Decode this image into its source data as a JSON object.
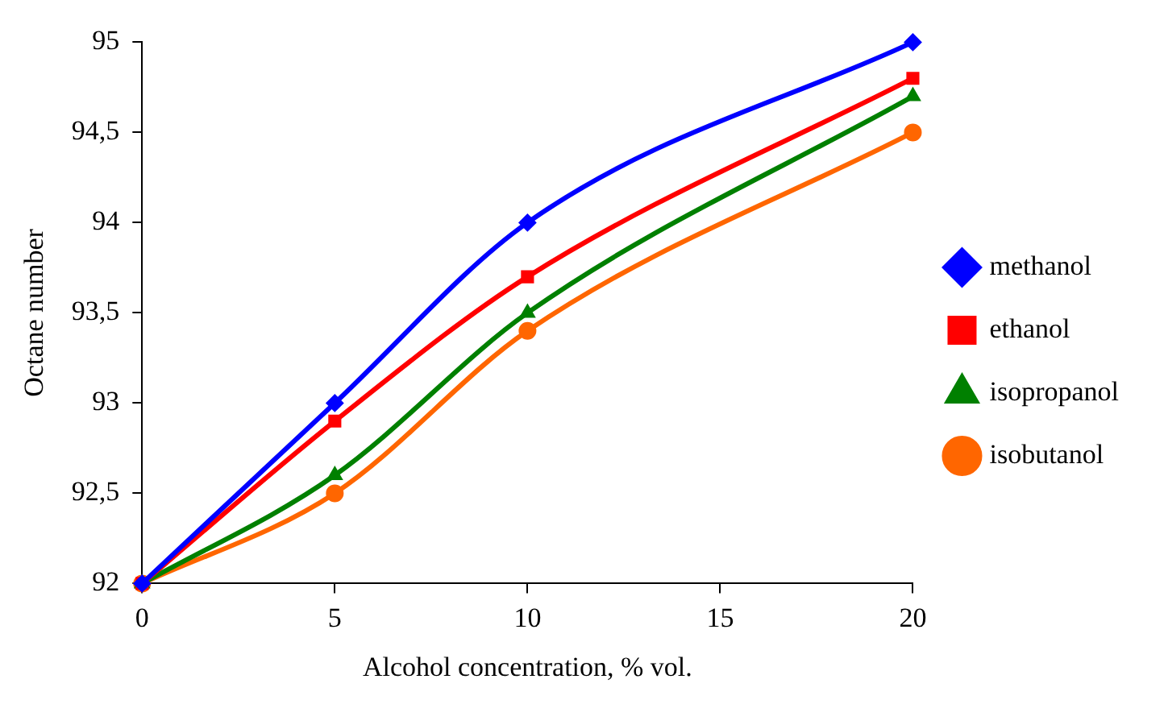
{
  "chart_data": {
    "type": "line",
    "xlabel": "Alcohol concentration, % vol.",
    "ylabel": "Octane number",
    "x": [
      0,
      5,
      10,
      20
    ],
    "xlim": [
      0,
      20
    ],
    "xticks": [
      0,
      5,
      10,
      15,
      20
    ],
    "ylim": [
      92,
      95
    ],
    "yticks": [
      92,
      {
        "value": 92.5,
        "label": "92,5"
      },
      93,
      {
        "value": 93.5,
        "label": "93,5"
      },
      94,
      {
        "value": 94.5,
        "label": "94,5"
      },
      95
    ],
    "grid": false,
    "legend": "right",
    "line_style": "solid",
    "series": [
      {
        "name": "methanol",
        "color": "#0000ff",
        "marker": "diamond",
        "values": [
          92,
          93,
          94,
          95
        ]
      },
      {
        "name": "ethanol",
        "color": "#ff0000",
        "marker": "square",
        "values": [
          92,
          92.9,
          93.7,
          94.8
        ]
      },
      {
        "name": "isopropanol",
        "color": "#008000",
        "marker": "triangle",
        "values": [
          92,
          92.6,
          93.5,
          94.7
        ]
      },
      {
        "name": "isobutanol",
        "color": "#ff6600",
        "marker": "circle",
        "values": [
          92,
          92.5,
          93.4,
          94.5
        ]
      }
    ]
  }
}
